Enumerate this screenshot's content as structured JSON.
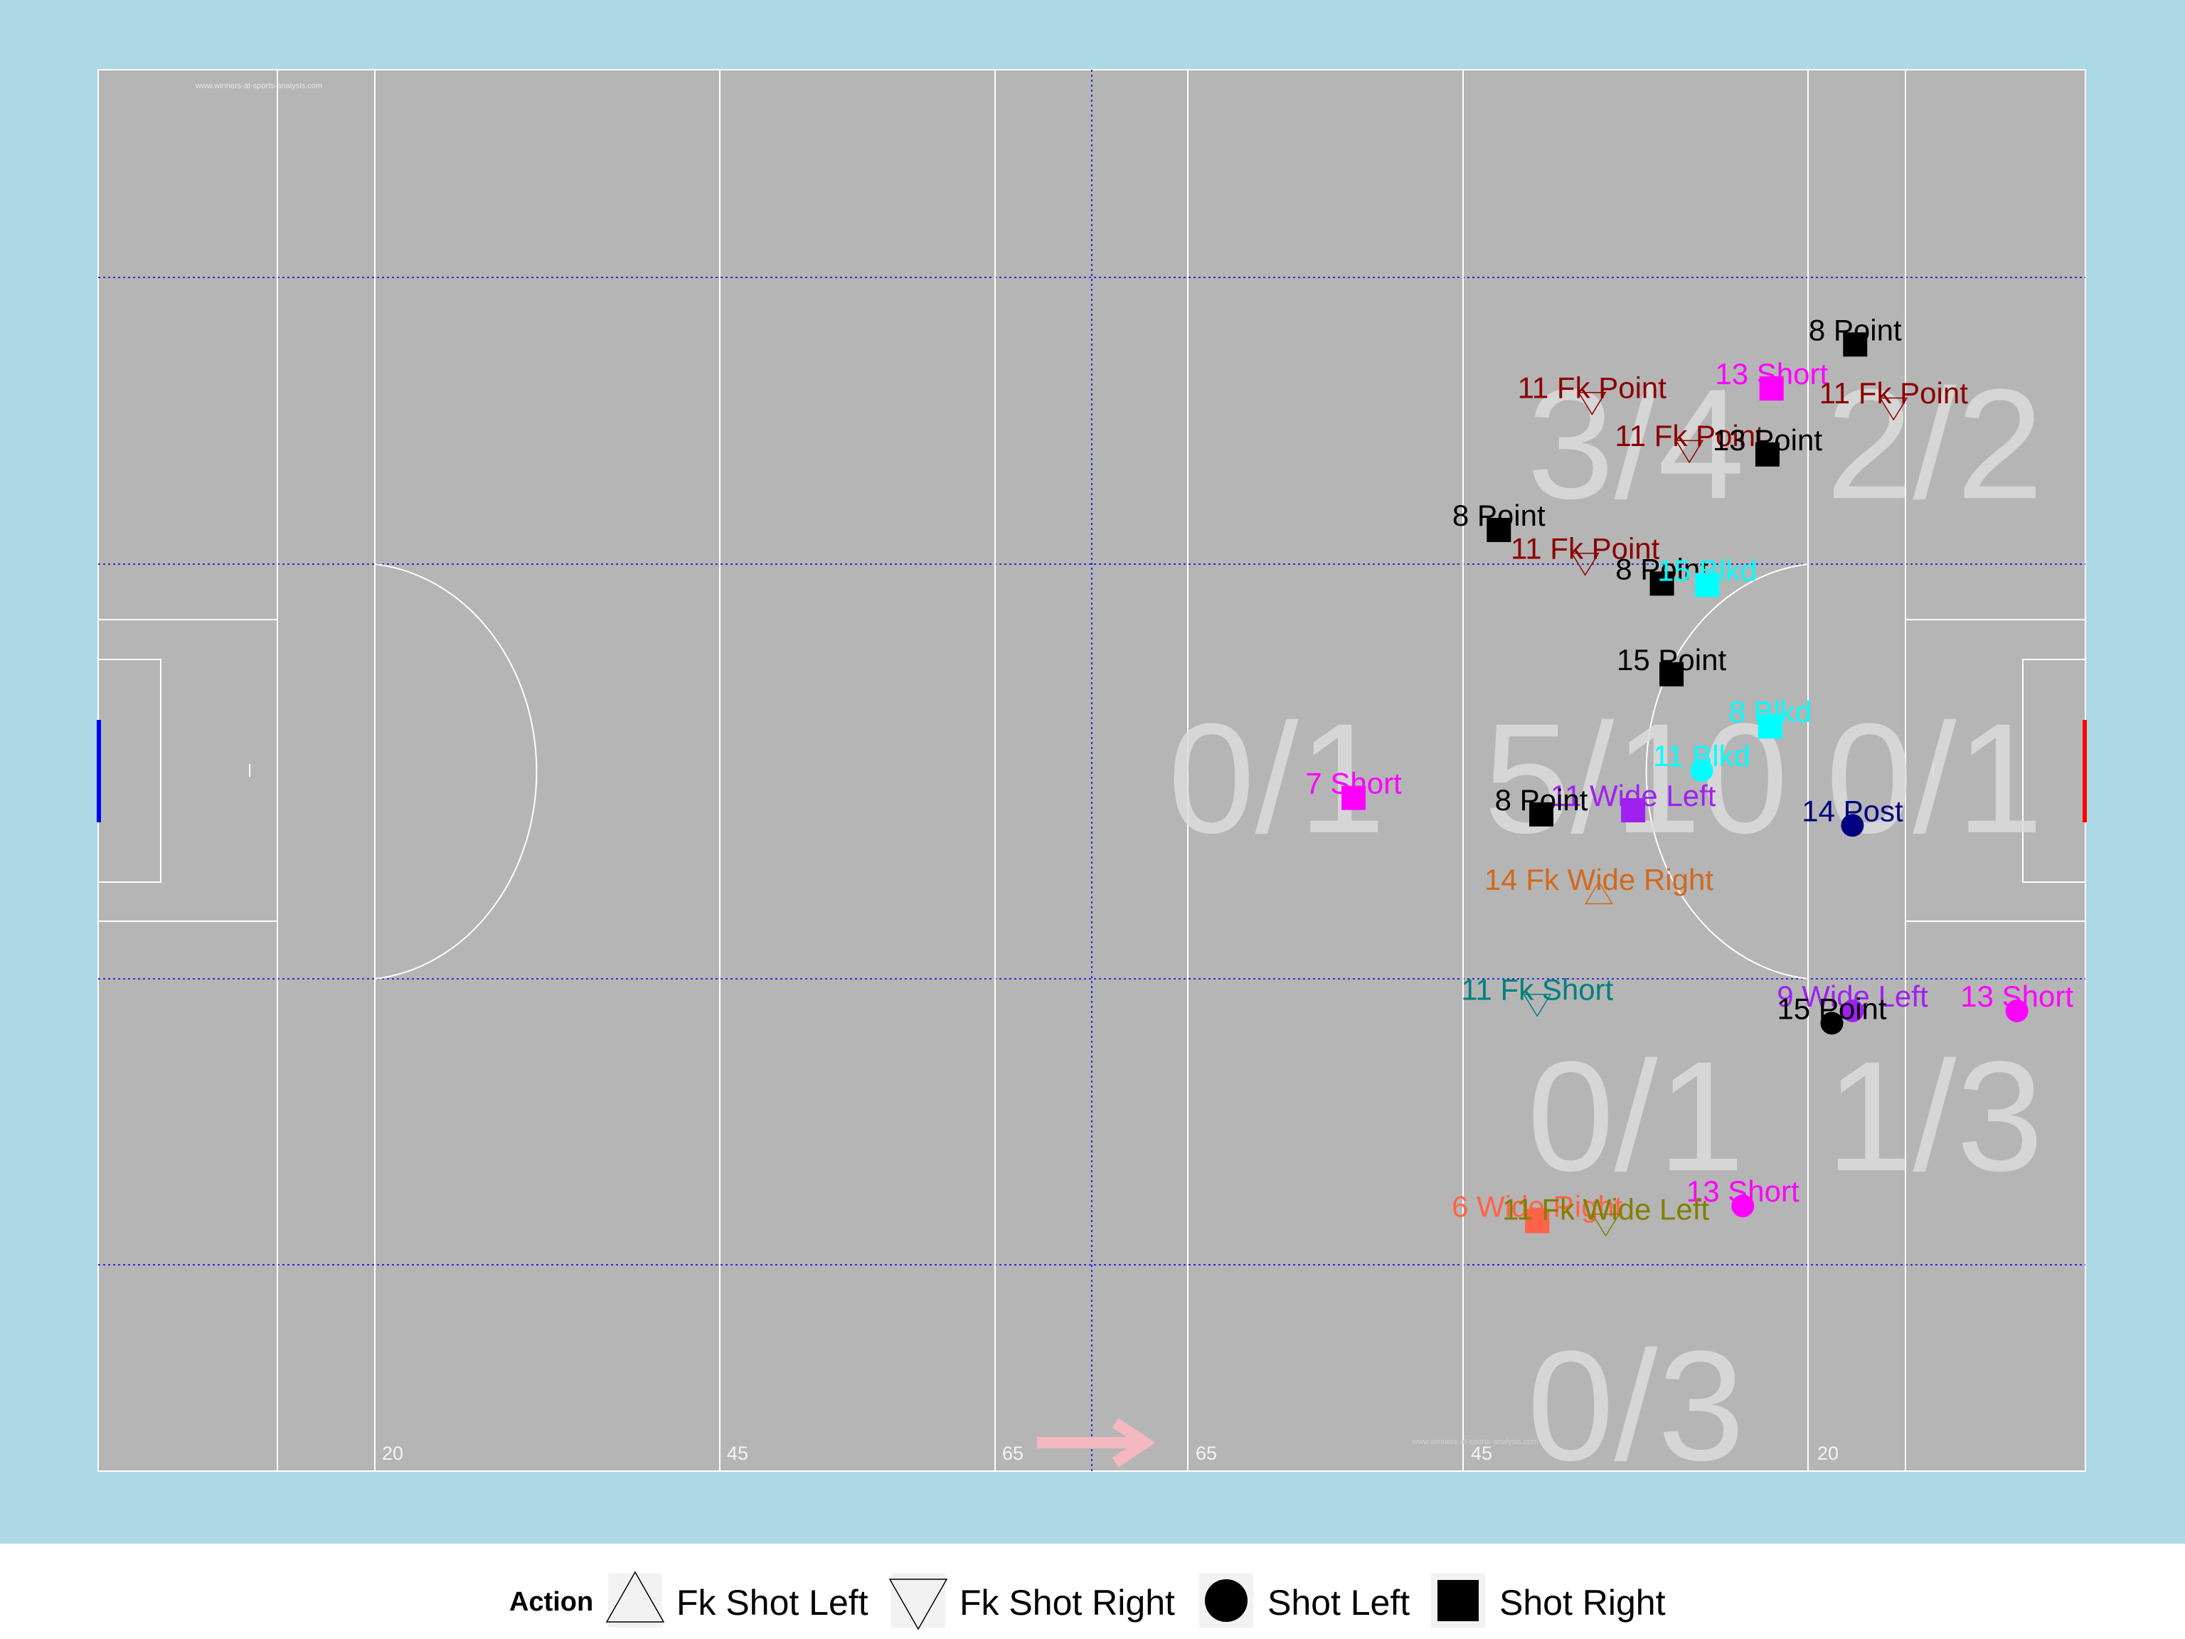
{
  "watermark": "www.winners-at-sports-analysis.com",
  "pitch_labels": [
    "20",
    "45",
    "65",
    "65",
    "45",
    "20"
  ],
  "colors": {
    "background": "#add8e6",
    "pitch": "#b5b5b5",
    "lines": "#ffffff",
    "grid": "#2b2bdb",
    "zone_text": "#dcdcdc",
    "arrow": "#f4b8c0",
    "left_goal": "#0000ff",
    "right_goal": "#ff0000"
  },
  "zone_labels": [
    {
      "text": "3/4",
      "zone": "upper-center"
    },
    {
      "text": "2/2",
      "zone": "upper-right"
    },
    {
      "text": "0/1",
      "zone": "middle-left"
    },
    {
      "text": "5/10",
      "zone": "middle-center"
    },
    {
      "text": "0/1",
      "zone": "middle-right"
    },
    {
      "text": "0/1",
      "zone": "lower-center"
    },
    {
      "text": "1/3",
      "zone": "lower-right"
    },
    {
      "text": "0/3",
      "zone": "bottom-center"
    }
  ],
  "chart_data": {
    "type": "scatter",
    "xlim": [
      0,
      145
    ],
    "ylim": [
      0,
      102
    ],
    "points": [
      {
        "label": "8 Point",
        "shape": "square",
        "color": "#000000",
        "x": 128.2,
        "y": 82.0
      },
      {
        "label": "13 Short",
        "shape": "square",
        "color": "#ff00ff",
        "x": 122.1,
        "y": 78.8
      },
      {
        "label": "11 Fk Point",
        "shape": "tri-down",
        "color": "#8b0000",
        "x": 109.0,
        "y": 77.8
      },
      {
        "label": "11 Fk Point",
        "shape": "tri-down",
        "color": "#8b0000",
        "x": 131.0,
        "y": 77.4
      },
      {
        "label": "11 Fk Point",
        "shape": "tri-down",
        "color": "#8b0000",
        "x": 116.1,
        "y": 74.3
      },
      {
        "label": "13 Point",
        "shape": "square",
        "color": "#000000",
        "x": 121.8,
        "y": 74.0
      },
      {
        "label": "8 Point",
        "shape": "square",
        "color": "#000000",
        "x": 102.2,
        "y": 68.5
      },
      {
        "label": "11 Fk Point",
        "shape": "tri-down",
        "color": "#8b0000",
        "x": 108.5,
        "y": 66.1
      },
      {
        "label": "8 Point",
        "shape": "square",
        "color": "#000000",
        "x": 114.1,
        "y": 64.6
      },
      {
        "label": "15 Blkd",
        "shape": "square",
        "color": "#00ffff",
        "x": 117.4,
        "y": 64.5
      },
      {
        "label": "15 Point",
        "shape": "square",
        "color": "#000000",
        "x": 114.8,
        "y": 58.0
      },
      {
        "label": "8 Blkd",
        "shape": "square",
        "color": "#00ffff",
        "x": 122.0,
        "y": 54.2
      },
      {
        "label": "11 Blkd",
        "shape": "circle",
        "color": "#00ffff",
        "x": 117.0,
        "y": 51.0
      },
      {
        "label": "7 Short",
        "shape": "square",
        "color": "#ff00ff",
        "x": 91.6,
        "y": 49.0
      },
      {
        "label": "11 Wide Left",
        "shape": "square",
        "color": "#a020f0",
        "x": 112.0,
        "y": 48.1
      },
      {
        "label": "8 Point",
        "shape": "square",
        "color": "#000000",
        "x": 105.3,
        "y": 47.8
      },
      {
        "label": "14 Post",
        "shape": "circle",
        "color": "#000080",
        "x": 128.0,
        "y": 47.0
      },
      {
        "label": "14 Fk Wide Right",
        "shape": "tri-up",
        "color": "#d2691e",
        "x": 109.5,
        "y": 42.0
      },
      {
        "label": "9 Wide Left",
        "shape": "circle",
        "color": "#a020f0",
        "x": 128.0,
        "y": 33.5
      },
      {
        "label": "13 Short",
        "shape": "circle",
        "color": "#ff00ff",
        "x": 140.0,
        "y": 33.5
      },
      {
        "label": "15 Point",
        "shape": "circle",
        "color": "#000000",
        "x": 126.5,
        "y": 32.6
      },
      {
        "label": "11 Fk Short",
        "shape": "tri-down",
        "color": "#008080",
        "x": 105.0,
        "y": 34.0
      },
      {
        "label": "13 Short",
        "shape": "circle",
        "color": "#ff00ff",
        "x": 120.0,
        "y": 19.3
      },
      {
        "label": "6 Wide Right",
        "shape": "square",
        "color": "#ff6347",
        "x": 105.0,
        "y": 18.2
      },
      {
        "label": "11 Fk Wide Left",
        "shape": "tri-down",
        "color": "#808000",
        "x": 110.0,
        "y": 18.0
      }
    ]
  },
  "legend": {
    "title": "Action",
    "items": [
      {
        "shape": "tri-up",
        "label": "Fk Shot Left"
      },
      {
        "shape": "tri-down",
        "label": "Fk Shot Right"
      },
      {
        "shape": "circle",
        "label": "Shot Left"
      },
      {
        "shape": "square",
        "label": "Shot Right"
      }
    ]
  }
}
